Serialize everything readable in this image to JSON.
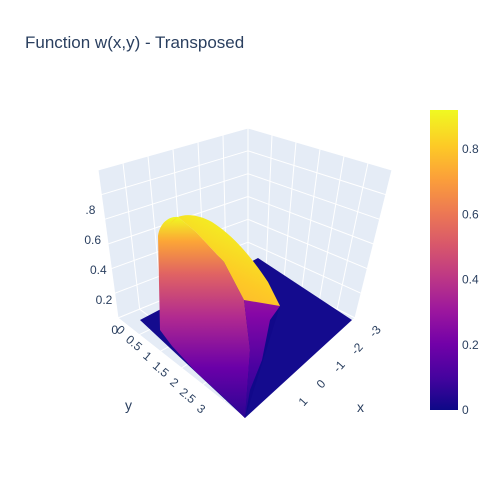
{
  "title": "Function w(x,y) - Transposed",
  "chart_data": {
    "type": "surface",
    "title": "Function w(x,y) - Transposed",
    "xlabel": "x",
    "ylabel": "y",
    "zlabel": "",
    "x_ticks": [
      "1",
      "0",
      "-1",
      "-2",
      "-3"
    ],
    "y_ticks": [
      "0",
      "0.5",
      "1",
      "1.5",
      "2",
      "2.5",
      "3"
    ],
    "z_ticks": [
      "0",
      "0.2",
      "0.4",
      "0.6",
      "0.8"
    ],
    "xlim": [
      -3,
      1.5
    ],
    "ylim": [
      0,
      3.5
    ],
    "zlim": [
      0,
      0.92
    ],
    "surface_peak": 0.92,
    "colorbar": {
      "ticks": [
        "0",
        "0.2",
        "0.4",
        "0.6",
        "0.8"
      ],
      "tick_values": [
        0,
        0.2,
        0.4,
        0.6,
        0.8
      ],
      "range": [
        0,
        0.92
      ],
      "colorscale": [
        "#0d0887",
        "#46039f",
        "#7201a8",
        "#9c179e",
        "#bd3786",
        "#d8576b",
        "#ed7953",
        "#fb9f3a",
        "#fdca26",
        "#f0f921"
      ]
    },
    "grid": true,
    "scene_background": "#e5ecf6"
  }
}
